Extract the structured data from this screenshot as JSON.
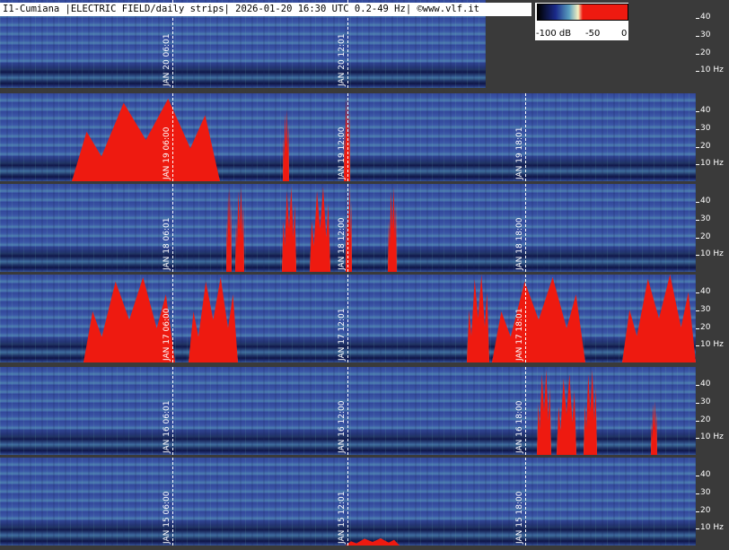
{
  "header": {
    "title": "I1-Cumiana |ELECTRIC FIELD/daily strips| 2026-01-20 16:30 UTC 0.2-49 Hz| ©www.vlf.it"
  },
  "colorbar": {
    "labels": [
      "-100 dB",
      "-50",
      "0"
    ]
  },
  "freq_ticks": [
    "40",
    "30",
    "20",
    "10 Hz"
  ],
  "strips": [
    {
      "time_labels": [
        "JAN 20 06:01",
        "JAN 20 12:01"
      ]
    },
    {
      "time_labels": [
        "JAN 19 06:00",
        "JAN 19 12:00",
        "JAN 19 18:01"
      ]
    },
    {
      "time_labels": [
        "JAN 18 06:01",
        "JAN 18 12:00",
        "JAN 18 18:00"
      ]
    },
    {
      "time_labels": [
        "JAN 17 06:00",
        "JAN 17 12:01",
        "JAN 17 18:01"
      ]
    },
    {
      "time_labels": [
        "JAN 16 06:01",
        "JAN 16 12:00",
        "JAN 16 18:00"
      ]
    },
    {
      "time_labels": [
        "JAN 15 06:00",
        "JAN 15 12:01",
        "JAN 15 18:00"
      ]
    }
  ]
}
